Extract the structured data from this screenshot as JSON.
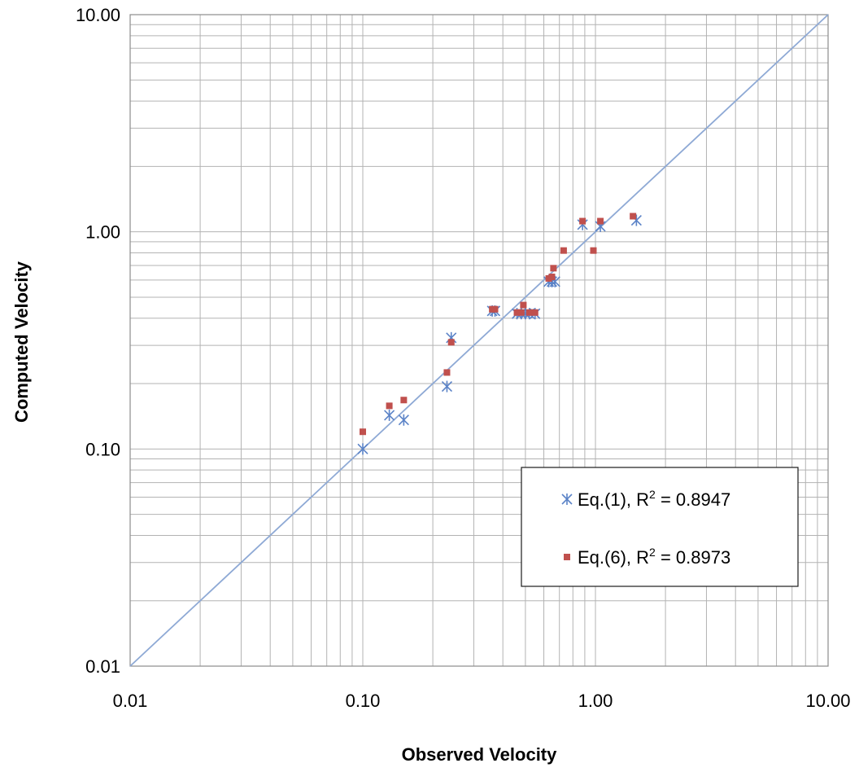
{
  "chart_data": {
    "type": "scatter",
    "title": "",
    "xlabel": "Observed Velocity",
    "ylabel": "Computed Velocity",
    "x_scale": "log",
    "y_scale": "log",
    "xlim": [
      0.01,
      10
    ],
    "ylim": [
      0.01,
      10
    ],
    "x_ticks": [
      "0.01",
      "0.10",
      "1.00",
      "10.00"
    ],
    "y_ticks": [
      "0.01",
      "0.10",
      "1.00",
      "10.00"
    ],
    "grid": true,
    "grid_color": "#b3b3b3",
    "legend_position": "lower-right",
    "reference_line": {
      "type": "line",
      "from": [
        0.01,
        0.01
      ],
      "to": [
        10,
        10
      ],
      "color": "#8ea9d5"
    },
    "series": [
      {
        "name_prefix": "Eq.(1), R",
        "name_sup": "2",
        "name_suffix": " = 0.8947",
        "marker": "asterisk",
        "color": "#5b83c7",
        "points": [
          [
            0.1,
            0.1
          ],
          [
            0.13,
            0.143
          ],
          [
            0.15,
            0.136
          ],
          [
            0.23,
            0.194
          ],
          [
            0.24,
            0.325
          ],
          [
            0.36,
            0.432
          ],
          [
            0.37,
            0.432
          ],
          [
            0.46,
            0.42
          ],
          [
            0.48,
            0.42
          ],
          [
            0.5,
            0.42
          ],
          [
            0.52,
            0.42
          ],
          [
            0.55,
            0.42
          ],
          [
            0.63,
            0.59
          ],
          [
            0.65,
            0.59
          ],
          [
            0.67,
            0.59
          ],
          [
            0.88,
            1.08
          ],
          [
            1.05,
            1.06
          ],
          [
            1.5,
            1.13
          ]
        ]
      },
      {
        "name_prefix": "Eq.(6), R",
        "name_sup": "2",
        "name_suffix": " = 0.8973",
        "marker": "square",
        "color": "#c0504d",
        "points": [
          [
            0.1,
            0.12
          ],
          [
            0.13,
            0.158
          ],
          [
            0.15,
            0.168
          ],
          [
            0.23,
            0.225
          ],
          [
            0.24,
            0.31
          ],
          [
            0.36,
            0.44
          ],
          [
            0.37,
            0.44
          ],
          [
            0.46,
            0.425
          ],
          [
            0.48,
            0.425
          ],
          [
            0.49,
            0.46
          ],
          [
            0.52,
            0.425
          ],
          [
            0.55,
            0.425
          ],
          [
            0.63,
            0.61
          ],
          [
            0.65,
            0.62
          ],
          [
            0.66,
            0.68
          ],
          [
            0.73,
            0.82
          ],
          [
            0.88,
            1.12
          ],
          [
            0.98,
            0.82
          ],
          [
            1.05,
            1.12
          ],
          [
            1.45,
            1.18
          ]
        ]
      }
    ]
  }
}
